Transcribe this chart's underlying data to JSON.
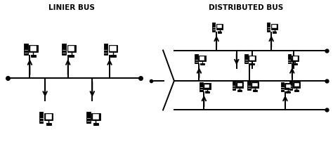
{
  "bg_color": "#ffffff",
  "line_color": "#000000",
  "title_left": "LINIER BUS",
  "title_right": "DISTRIBUTED BUS",
  "title_fontsize": 7.5,
  "title_fontweight": "bold",
  "figsize": [
    4.74,
    2.29
  ],
  "dpi": 100
}
